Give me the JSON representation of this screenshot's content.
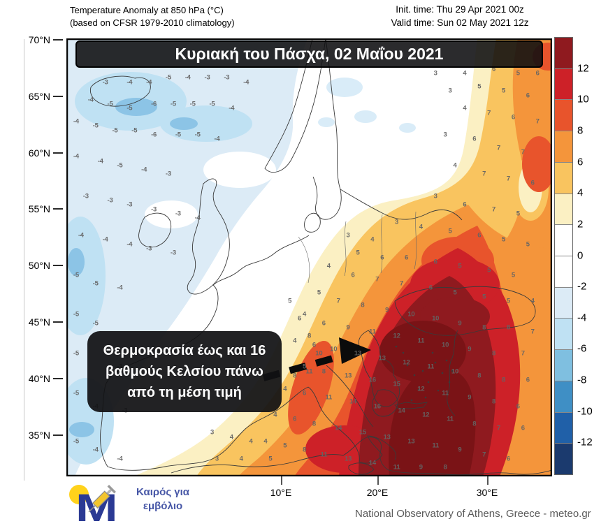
{
  "header": {
    "title_line1": "Temperature Anomaly at 850 hPa (°C)",
    "title_line2": "(based on CFSR 1979-2010 climatology)",
    "init_time": "Init. time: Thu 29 Apr 2021 00z",
    "valid_time": "Valid time: Sun 02 May 2021 12z"
  },
  "map": {
    "banner": "Κυριακή του Πάσχα, 02 Μαΐου 2021",
    "annotation": {
      "line1": "Θερμοκρασία έως και 16",
      "line2": "βαθμούς Κελσίου πάνω",
      "line3": "από τη μέση τιμή"
    },
    "lat_labels": [
      "70°N",
      "65°N",
      "60°N",
      "55°N",
      "50°N",
      "45°N",
      "40°N",
      "35°N"
    ],
    "lon_labels": [
      "10°E",
      "20°E",
      "30°E"
    ],
    "values": [
      [
        8,
        10,
        "-3"
      ],
      [
        13,
        10,
        "-4"
      ],
      [
        17,
        10,
        "-4"
      ],
      [
        21,
        9,
        "-5"
      ],
      [
        25,
        9,
        "-4"
      ],
      [
        29,
        9,
        "-3"
      ],
      [
        33,
        9,
        "-3"
      ],
      [
        37,
        10,
        "-4"
      ],
      [
        5,
        14,
        "-4"
      ],
      [
        9,
        15,
        "-5"
      ],
      [
        13,
        16,
        "-5"
      ],
      [
        18,
        15,
        "-6"
      ],
      [
        22,
        15,
        "-5"
      ],
      [
        26,
        15,
        "-5"
      ],
      [
        30,
        15,
        "-5"
      ],
      [
        34,
        16,
        "-4"
      ],
      [
        2,
        19,
        "-4"
      ],
      [
        6,
        20,
        "-5"
      ],
      [
        10,
        21,
        "-5"
      ],
      [
        14,
        21,
        "-5"
      ],
      [
        18,
        22,
        "-6"
      ],
      [
        23,
        22,
        "-5"
      ],
      [
        27,
        22,
        "-5"
      ],
      [
        31,
        23,
        "-4"
      ],
      [
        2,
        27,
        "-4"
      ],
      [
        7,
        28,
        "-4"
      ],
      [
        11,
        29,
        "-5"
      ],
      [
        16,
        30,
        "-4"
      ],
      [
        21,
        31,
        "-3"
      ],
      [
        4,
        36,
        "-3"
      ],
      [
        9,
        37,
        "-3"
      ],
      [
        13,
        38,
        "-3"
      ],
      [
        18,
        39,
        "-3"
      ],
      [
        23,
        40,
        "-3"
      ],
      [
        27,
        41,
        "-4"
      ],
      [
        3,
        45,
        "-4"
      ],
      [
        8,
        46,
        "-4"
      ],
      [
        13,
        47,
        "-4"
      ],
      [
        17,
        48,
        "-3"
      ],
      [
        22,
        49,
        "-3"
      ],
      [
        2,
        54,
        "-5"
      ],
      [
        6,
        56,
        "-5"
      ],
      [
        11,
        57,
        "-4"
      ],
      [
        2,
        63,
        "-5"
      ],
      [
        6,
        65,
        "-5"
      ],
      [
        2,
        72,
        "-5"
      ],
      [
        11,
        75,
        "-3"
      ],
      [
        2,
        81,
        "-5"
      ],
      [
        6,
        84,
        "-4"
      ],
      [
        12,
        85,
        "-3"
      ],
      [
        2,
        92,
        "-5"
      ],
      [
        6,
        94,
        "-4"
      ],
      [
        11,
        96,
        "-4"
      ],
      [
        76,
        8,
        "3"
      ],
      [
        82,
        8,
        "4"
      ],
      [
        88,
        7,
        "6"
      ],
      [
        93,
        8,
        "5"
      ],
      [
        97,
        8,
        "6"
      ],
      [
        79,
        12,
        "3"
      ],
      [
        85,
        11,
        "5"
      ],
      [
        90,
        12,
        "5"
      ],
      [
        95,
        13,
        "6"
      ],
      [
        82,
        16,
        "4"
      ],
      [
        87,
        17,
        "7"
      ],
      [
        92,
        18,
        "6"
      ],
      [
        97,
        19,
        "7"
      ],
      [
        78,
        22,
        "3"
      ],
      [
        84,
        23,
        "6"
      ],
      [
        89,
        25,
        "7"
      ],
      [
        94,
        26,
        "7"
      ],
      [
        80,
        29,
        "4"
      ],
      [
        86,
        31,
        "7"
      ],
      [
        91,
        32,
        "7"
      ],
      [
        96,
        33,
        "6"
      ],
      [
        76,
        36,
        "3"
      ],
      [
        82,
        38,
        "6"
      ],
      [
        88,
        39,
        "7"
      ],
      [
        93,
        40,
        "5"
      ],
      [
        68,
        42,
        "3"
      ],
      [
        73,
        43,
        "4"
      ],
      [
        79,
        44,
        "5"
      ],
      [
        85,
        45,
        "6"
      ],
      [
        90,
        46,
        "5"
      ],
      [
        95,
        47,
        "5"
      ],
      [
        58,
        45,
        "3"
      ],
      [
        63,
        46,
        "4"
      ],
      [
        60,
        49,
        "5"
      ],
      [
        65,
        50,
        "6"
      ],
      [
        70,
        50,
        "6"
      ],
      [
        76,
        51,
        "6"
      ],
      [
        81,
        52,
        "5"
      ],
      [
        87,
        53,
        "5"
      ],
      [
        92,
        54,
        "5"
      ],
      [
        54,
        52,
        "4"
      ],
      [
        59,
        54,
        "6"
      ],
      [
        64,
        55,
        "7"
      ],
      [
        69,
        56,
        "7"
      ],
      [
        75,
        57,
        "6"
      ],
      [
        80,
        58,
        "5"
      ],
      [
        86,
        59,
        "5"
      ],
      [
        91,
        60,
        "5"
      ],
      [
        96,
        60,
        "4"
      ],
      [
        52,
        58,
        "5"
      ],
      [
        56,
        60,
        "7"
      ],
      [
        61,
        61,
        "8"
      ],
      [
        66,
        62,
        "9"
      ],
      [
        71,
        63,
        "10"
      ],
      [
        76,
        64,
        "10"
      ],
      [
        81,
        65,
        "9"
      ],
      [
        86,
        66,
        "8"
      ],
      [
        91,
        66,
        "8"
      ],
      [
        96,
        67,
        "7"
      ],
      [
        49,
        63,
        "4"
      ],
      [
        53,
        65,
        "6"
      ],
      [
        58,
        66,
        "9"
      ],
      [
        63,
        67,
        "11"
      ],
      [
        68,
        68,
        "12"
      ],
      [
        73,
        69,
        "11"
      ],
      [
        78,
        70,
        "10"
      ],
      [
        83,
        71,
        "9"
      ],
      [
        88,
        72,
        "8"
      ],
      [
        94,
        72,
        "7"
      ],
      [
        47,
        69,
        "4"
      ],
      [
        51,
        70,
        "6"
      ],
      [
        55,
        71,
        "10"
      ],
      [
        60,
        72,
        "13"
      ],
      [
        65,
        73,
        "13"
      ],
      [
        70,
        74,
        "12"
      ],
      [
        75,
        75,
        "11"
      ],
      [
        80,
        76,
        "10"
      ],
      [
        85,
        77,
        "8"
      ],
      [
        90,
        78,
        "8"
      ],
      [
        95,
        78,
        "6"
      ],
      [
        49,
        75,
        "5"
      ],
      [
        53,
        76,
        "8"
      ],
      [
        58,
        77,
        "13"
      ],
      [
        63,
        78,
        "16"
      ],
      [
        68,
        79,
        "15"
      ],
      [
        73,
        80,
        "12"
      ],
      [
        78,
        81,
        "11"
      ],
      [
        83,
        82,
        "9"
      ],
      [
        88,
        83,
        "8"
      ],
      [
        93,
        84,
        "6"
      ],
      [
        45,
        80,
        "4"
      ],
      [
        49,
        81,
        "6"
      ],
      [
        54,
        82,
        "11"
      ],
      [
        59,
        83,
        "14"
      ],
      [
        64,
        84,
        "16"
      ],
      [
        69,
        85,
        "14"
      ],
      [
        74,
        86,
        "12"
      ],
      [
        79,
        87,
        "11"
      ],
      [
        84,
        88,
        "8"
      ],
      [
        89,
        89,
        "7"
      ],
      [
        94,
        89,
        "6"
      ],
      [
        43,
        86,
        "4"
      ],
      [
        47,
        87,
        "6"
      ],
      [
        51,
        88,
        "8"
      ],
      [
        56,
        89,
        "14"
      ],
      [
        61,
        90,
        "15"
      ],
      [
        66,
        91,
        "13"
      ],
      [
        71,
        92,
        "13"
      ],
      [
        76,
        93,
        "11"
      ],
      [
        81,
        94,
        "9"
      ],
      [
        86,
        95,
        "7"
      ],
      [
        91,
        96,
        "6"
      ],
      [
        41,
        92,
        "4"
      ],
      [
        45,
        93,
        "5"
      ],
      [
        49,
        94,
        "8"
      ],
      [
        53,
        95,
        "11"
      ],
      [
        58,
        96,
        "13"
      ],
      [
        63,
        97,
        "14"
      ],
      [
        68,
        98,
        "11"
      ],
      [
        73,
        98,
        "9"
      ],
      [
        78,
        98,
        "8"
      ],
      [
        46,
        60,
        "5"
      ],
      [
        48,
        64,
        "6"
      ],
      [
        50,
        68,
        "8"
      ],
      [
        52,
        72,
        "10"
      ],
      [
        50,
        76,
        "11"
      ],
      [
        47,
        77,
        "8"
      ],
      [
        30,
        90,
        "3"
      ],
      [
        34,
        91,
        "4"
      ],
      [
        38,
        92,
        "4"
      ],
      [
        42,
        96,
        "5"
      ],
      [
        36,
        96,
        "4"
      ],
      [
        31,
        96,
        "3"
      ]
    ]
  },
  "colorbar": {
    "tick_labels": [
      "12",
      "10",
      "8",
      "6",
      "4",
      "2",
      "0",
      "-2",
      "-4",
      "-6",
      "-8",
      "-10",
      "-12"
    ],
    "colors": [
      "#8f1a1f",
      "#cd2128",
      "#e8542c",
      "#f4953b",
      "#f9c45f",
      "#fbf0c3",
      "#ffffff",
      "#ffffff",
      "#dcebf6",
      "#bfe1f3",
      "#7fbfe0",
      "#3f8fc5",
      "#2060a8",
      "#1b3a6e"
    ]
  },
  "footer": {
    "logo_line1": "Καιρός για",
    "logo_line2": "εμβόλιο",
    "credit": "National Observatory of Athens, Greece - meteo.gr"
  },
  "style": {
    "accent_dark_red": "#7a1316",
    "banner_bg": "#0e0e10",
    "logo_blue": "#2b3a94",
    "logo_yellow": "#ffd21b"
  }
}
